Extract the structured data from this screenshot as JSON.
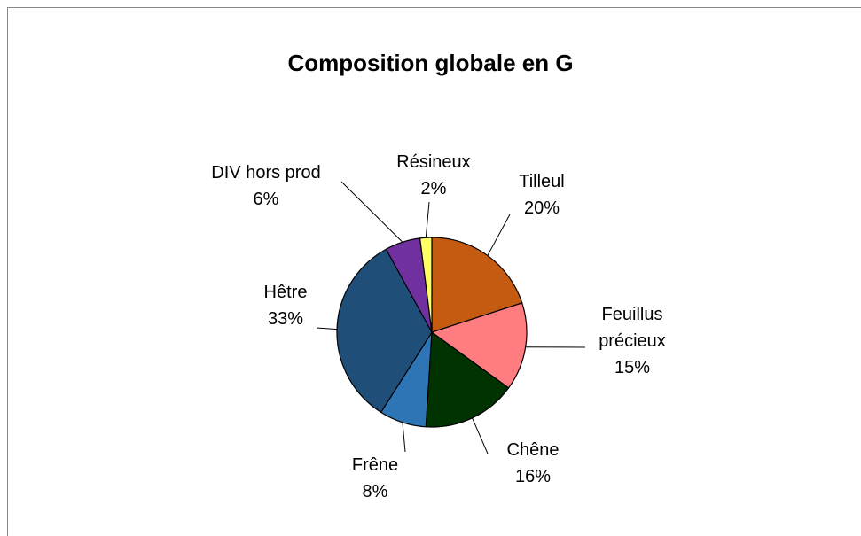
{
  "chart_data": {
    "type": "pie",
    "title": "Composition globale en G",
    "categories": [
      "Tilleul",
      "Feuillus précieux",
      "Chêne",
      "Frêne",
      "Hêtre",
      "DIV hors prod",
      "Résineux"
    ],
    "values": [
      20,
      15,
      16,
      8,
      33,
      6,
      2
    ],
    "value_labels": [
      "20%",
      "15%",
      "16%",
      "8%",
      "33%",
      "6%",
      "2%"
    ],
    "colors": [
      "#c55a11",
      "#ff7c80",
      "#003300",
      "#2e75b6",
      "#1f4e79",
      "#7030a0",
      "#ffff66"
    ]
  }
}
